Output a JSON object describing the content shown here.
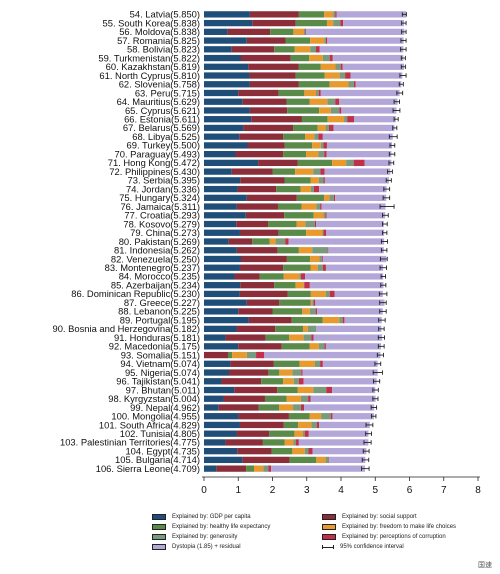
{
  "chart_data": {
    "type": "bar",
    "orientation": "horizontal",
    "stacked": true,
    "xlim": [
      0,
      8
    ],
    "xticks": [
      "0",
      "1",
      "2",
      "3",
      "4",
      "5",
      "6",
      "7",
      "8"
    ],
    "grid": false,
    "legend_position": "bottom",
    "categories": [
      "54. Latvia(5.850)",
      "55. South Korea(5.838)",
      "56. Moldova(5.838)",
      "57. Romania(5.825)",
      "58. Bolivia(5.823)",
      "59. Turkmenistan(5.822)",
      "60. Kazakhstan(5.819)",
      "61. North Cyprus(5.810)",
      "62. Slovenia(5.758)",
      "63. Peru(5.715)",
      "64. Mauritius(5.629)",
      "65. Cyprus(5.621)",
      "66. Estonia(5.611)",
      "67. Belarus(5.569)",
      "68. Libya(5.525)",
      "69. Turkey(5.500)",
      "70. Paraguay(5.493)",
      "71. Hong Kong(5.472)",
      "72. Philippines(5.430)",
      "73. Serbia(5.395)",
      "74. Jordan(5.336)",
      "75. Hungary(5.324)",
      "76. Jamaica(5.311)",
      "77. Croatia(5.293)",
      "78. Kosovo(5.279)",
      "79. China(5.273)",
      "80. Pakistan(5.269)",
      "81. Indonesia(5.262)",
      "82. Venezuela(5.250)",
      "83. Montenegro(5.237)",
      "84. Morocco(5.235)",
      "85. Azerbaijan(5.234)",
      "86. Dominican Republic(5.230)",
      "87. Greece(5.227)",
      "88. Lebanon(5.225)",
      "89. Portugal(5.195)",
      "90. Bosnia and Herzegovina(5.182)",
      "91. Honduras(5.181)",
      "92. Macedonia(5.175)",
      "93. Somalia(5.151)",
      "94. Vietnam(5.074)",
      "95. Nigeria(5.074)",
      "96. Tajikistan(5.041)",
      "97. Bhutan(5.011)",
      "98. Kyrgyzstan(5.004)",
      "99. Nepal(4.962)",
      "100. Mongolia(4.955)",
      "101. South Africa(4.829)",
      "102. Tunisia(4.805)",
      "103. Palestinian Territories(4.775)",
      "104. Egypt(4.735)",
      "105. Bulgaria(4.714)",
      "106. Sierra Leone(4.709)"
    ],
    "scores": [
      5.85,
      5.838,
      5.838,
      5.825,
      5.823,
      5.822,
      5.819,
      5.81,
      5.758,
      5.715,
      5.629,
      5.621,
      5.611,
      5.569,
      5.525,
      5.5,
      5.493,
      5.472,
      5.43,
      5.395,
      5.336,
      5.324,
      5.311,
      5.293,
      5.279,
      5.273,
      5.269,
      5.262,
      5.25,
      5.237,
      5.235,
      5.234,
      5.23,
      5.227,
      5.225,
      5.195,
      5.182,
      5.181,
      5.175,
      5.151,
      5.074,
      5.074,
      5.041,
      5.011,
      5.004,
      4.962,
      4.955,
      4.829,
      4.805,
      4.775,
      4.735,
      4.714,
      4.709
    ],
    "series": [
      {
        "name": "Explained by: GDP per capita",
        "color": "#1f4e79",
        "values": [
          1.34,
          1.41,
          0.69,
          1.25,
          0.81,
          1.08,
          1.29,
          1.33,
          1.34,
          1.0,
          1.13,
          1.34,
          1.38,
          1.15,
          1.03,
          1.27,
          0.92,
          1.58,
          0.81,
          1.06,
          0.98,
          1.25,
          0.96,
          1.22,
          0.94,
          1.05,
          0.72,
          0.96,
          1.08,
          1.05,
          0.89,
          1.06,
          1.04,
          1.25,
          1.0,
          1.31,
          0.95,
          0.63,
          1.0,
          0.0,
          0.77,
          0.73,
          0.51,
          0.88,
          0.57,
          0.43,
          1.01,
          1.05,
          0.95,
          0.63,
          0.97,
          1.12,
          0.36
        ]
      },
      {
        "name": "Explained by: social support",
        "color": "#8b2e3a",
        "values": [
          1.43,
          1.27,
          1.24,
          1.13,
          1.24,
          1.45,
          1.47,
          1.35,
          1.43,
          1.18,
          1.28,
          1.09,
          1.48,
          1.45,
          1.28,
          1.09,
          1.39,
          1.16,
          1.2,
          1.29,
          1.13,
          1.46,
          1.2,
          1.12,
          0.93,
          1.13,
          0.69,
          1.19,
          1.34,
          1.26,
          0.74,
          0.99,
          1.4,
          0.95,
          1.0,
          1.25,
          1.13,
          1.17,
          1.27,
          0.7,
          1.27,
          1.15,
          1.16,
          1.26,
          1.21,
          1.17,
          1.47,
          1.28,
          0.95,
          1.09,
          1.0,
          1.38,
          0.87
        ]
      },
      {
        "name": "Explained by: healthy life expectancy",
        "color": "#5a8a4a",
        "values": [
          0.74,
          0.91,
          0.68,
          0.72,
          0.6,
          0.54,
          0.65,
          0.84,
          0.9,
          0.75,
          0.67,
          0.93,
          0.75,
          0.72,
          0.64,
          0.8,
          0.67,
          1.0,
          0.65,
          0.76,
          0.71,
          0.8,
          0.69,
          0.86,
          0.83,
          0.8,
          0.51,
          0.62,
          0.68,
          0.8,
          0.7,
          0.62,
          0.68,
          0.92,
          0.87,
          0.9,
          0.81,
          0.69,
          0.81,
          0.12,
          0.75,
          0.32,
          0.64,
          0.59,
          0.63,
          0.59,
          0.6,
          0.42,
          0.74,
          0.64,
          0.61,
          0.78,
          0.23
        ]
      },
      {
        "name": "Explained by: freedom to make life choices",
        "color": "#e89a2e",
        "values": [
          0.26,
          0.18,
          0.31,
          0.41,
          0.45,
          0.4,
          0.43,
          0.44,
          0.55,
          0.34,
          0.52,
          0.34,
          0.48,
          0.23,
          0.27,
          0.25,
          0.36,
          0.41,
          0.53,
          0.24,
          0.3,
          0.15,
          0.43,
          0.29,
          0.26,
          0.48,
          0.17,
          0.39,
          0.27,
          0.21,
          0.45,
          0.24,
          0.44,
          0.04,
          0.22,
          0.49,
          0.14,
          0.42,
          0.27,
          0.43,
          0.45,
          0.38,
          0.31,
          0.46,
          0.42,
          0.41,
          0.34,
          0.39,
          0.25,
          0.25,
          0.36,
          0.27,
          0.27
        ]
      },
      {
        "name": "Explained by: generosity",
        "color": "#7a9a7e",
        "values": [
          0.06,
          0.21,
          0.04,
          0.05,
          0.17,
          0.2,
          0.15,
          0.16,
          0.16,
          0.08,
          0.23,
          0.25,
          0.09,
          0.1,
          0.12,
          0.08,
          0.17,
          0.22,
          0.21,
          0.14,
          0.09,
          0.13,
          0.11,
          0.06,
          0.28,
          0.03,
          0.28,
          0.45,
          0.07,
          0.15,
          0.05,
          0.02,
          0.11,
          0.04,
          0.17,
          0.1,
          0.25,
          0.22,
          0.17,
          0.27,
          0.15,
          0.26,
          0.15,
          0.38,
          0.21,
          0.23,
          0.28,
          0.16,
          0.05,
          0.07,
          0.11,
          0.09,
          0.15
        ]
      },
      {
        "name": "Explained by: perceptions of corruption",
        "color": "#c0304a",
        "values": [
          0.04,
          0.08,
          0.02,
          0.04,
          0.11,
          0.09,
          0.06,
          0.16,
          0.05,
          0.06,
          0.12,
          0.06,
          0.2,
          0.13,
          0.13,
          0.1,
          0.07,
          0.32,
          0.12,
          0.04,
          0.15,
          0.04,
          0.04,
          0.03,
          0.03,
          0.08,
          0.1,
          0.02,
          0.03,
          0.09,
          0.12,
          0.16,
          0.14,
          0.05,
          0.04,
          0.05,
          0.0,
          0.07,
          0.04,
          0.24,
          0.08,
          0.04,
          0.14,
          0.17,
          0.07,
          0.09,
          0.05,
          0.06,
          0.12,
          0.09,
          0.12,
          0.01,
          0.08
        ]
      },
      {
        "name": "Dystopia (1.85) + residual",
        "color": "#b3a7d9",
        "values": [
          2.03,
          1.78,
          2.87,
          2.23,
          2.44,
          2.06,
          1.79,
          1.51,
          1.33,
          2.3,
          1.7,
          1.61,
          1.22,
          1.78,
          2.04,
          1.9,
          1.89,
          0.78,
          1.92,
          1.87,
          1.97,
          1.49,
          1.87,
          1.71,
          1.98,
          1.69,
          2.79,
          1.62,
          1.85,
          1.67,
          2.28,
          2.15,
          1.41,
          2.02,
          1.92,
          1.09,
          1.9,
          2.0,
          1.61,
          3.39,
          1.6,
          2.19,
          2.13,
          1.26,
          1.9,
          2.05,
          1.21,
          1.48,
          1.74,
          2.03,
          1.57,
          1.06,
          2.74
        ]
      }
    ],
    "ci_low": [
      5.79,
      5.77,
      5.77,
      5.75,
      5.74,
      5.76,
      5.76,
      5.72,
      5.7,
      5.63,
      5.55,
      5.52,
      5.55,
      5.51,
      5.41,
      5.43,
      5.41,
      5.4,
      5.36,
      5.32,
      5.25,
      5.23,
      5.14,
      5.21,
      5.21,
      5.21,
      5.18,
      5.18,
      5.15,
      5.14,
      5.17,
      5.16,
      5.12,
      5.13,
      5.13,
      5.1,
      5.1,
      5.09,
      5.09,
      5.06,
      4.99,
      4.94,
      4.95,
      4.93,
      4.93,
      4.88,
      4.89,
      4.73,
      4.72,
      4.67,
      4.65,
      4.62,
      4.6
    ],
    "ci_high": [
      5.91,
      5.9,
      5.9,
      5.9,
      5.9,
      5.88,
      5.88,
      5.9,
      5.82,
      5.8,
      5.71,
      5.72,
      5.67,
      5.63,
      5.64,
      5.57,
      5.57,
      5.54,
      5.5,
      5.47,
      5.42,
      5.42,
      5.55,
      5.38,
      5.35,
      5.34,
      5.36,
      5.34,
      5.35,
      5.33,
      5.3,
      5.31,
      5.34,
      5.32,
      5.32,
      5.29,
      5.26,
      5.27,
      5.26,
      5.24,
      5.16,
      5.21,
      5.13,
      5.09,
      5.08,
      5.04,
      5.02,
      4.93,
      4.89,
      4.88,
      4.82,
      4.81,
      4.82
    ]
  },
  "legend": {
    "items": [
      {
        "label": "Explained by: GDP per capita",
        "color": "#1f4e79"
      },
      {
        "label": "Explained by: social support",
        "color": "#8b2e3a"
      },
      {
        "label": "Explained by: healthy life expectancy",
        "color": "#5a8a4a"
      },
      {
        "label": "Explained by: freedom to make life choices",
        "color": "#e89a2e"
      },
      {
        "label": "Explained by: generosity",
        "color": "#7a9a7e"
      },
      {
        "label": "Explained by: perceptions of corruption",
        "color": "#c0304a"
      },
      {
        "label": "Dystopia (1.85) + residual",
        "color": "#b3a7d9"
      },
      {
        "label": "95% confidence interval",
        "color": "#222222"
      }
    ]
  },
  "watermark": "国速"
}
